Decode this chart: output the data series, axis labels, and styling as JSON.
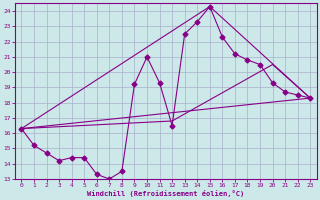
{
  "xlabel": "Windchill (Refroidissement éolien,°C)",
  "xlim": [
    -0.5,
    23.5
  ],
  "ylim": [
    13,
    24.5
  ],
  "yticks": [
    13,
    14,
    15,
    16,
    17,
    18,
    19,
    20,
    21,
    22,
    23,
    24
  ],
  "xticks": [
    0,
    1,
    2,
    3,
    4,
    5,
    6,
    7,
    8,
    9,
    10,
    11,
    12,
    13,
    14,
    15,
    16,
    17,
    18,
    19,
    20,
    21,
    22,
    23
  ],
  "background_color": "#cde8e8",
  "grid_color": "#aab0cc",
  "line_color": "#880088",
  "series1": {
    "x": [
      0,
      1,
      2,
      3,
      4,
      5,
      6,
      7,
      8,
      9,
      10,
      11,
      12,
      13,
      14,
      15,
      16,
      17,
      18,
      19,
      20,
      21,
      22,
      23
    ],
    "y": [
      16.3,
      15.2,
      14.7,
      14.2,
      14.4,
      14.4,
      13.3,
      13.0,
      13.5,
      19.2,
      21.0,
      19.3,
      16.5,
      22.5,
      23.3,
      24.3,
      22.3,
      21.2,
      20.8,
      20.5,
      19.3,
      18.7,
      18.5,
      18.3
    ]
  },
  "series2": {
    "x": [
      0,
      23
    ],
    "y": [
      16.3,
      18.3
    ]
  },
  "series3": {
    "x": [
      0,
      15,
      23
    ],
    "y": [
      16.3,
      24.3,
      18.3
    ]
  },
  "series4": {
    "x": [
      0,
      12,
      20,
      23
    ],
    "y": [
      16.3,
      16.8,
      20.5,
      18.3
    ]
  }
}
